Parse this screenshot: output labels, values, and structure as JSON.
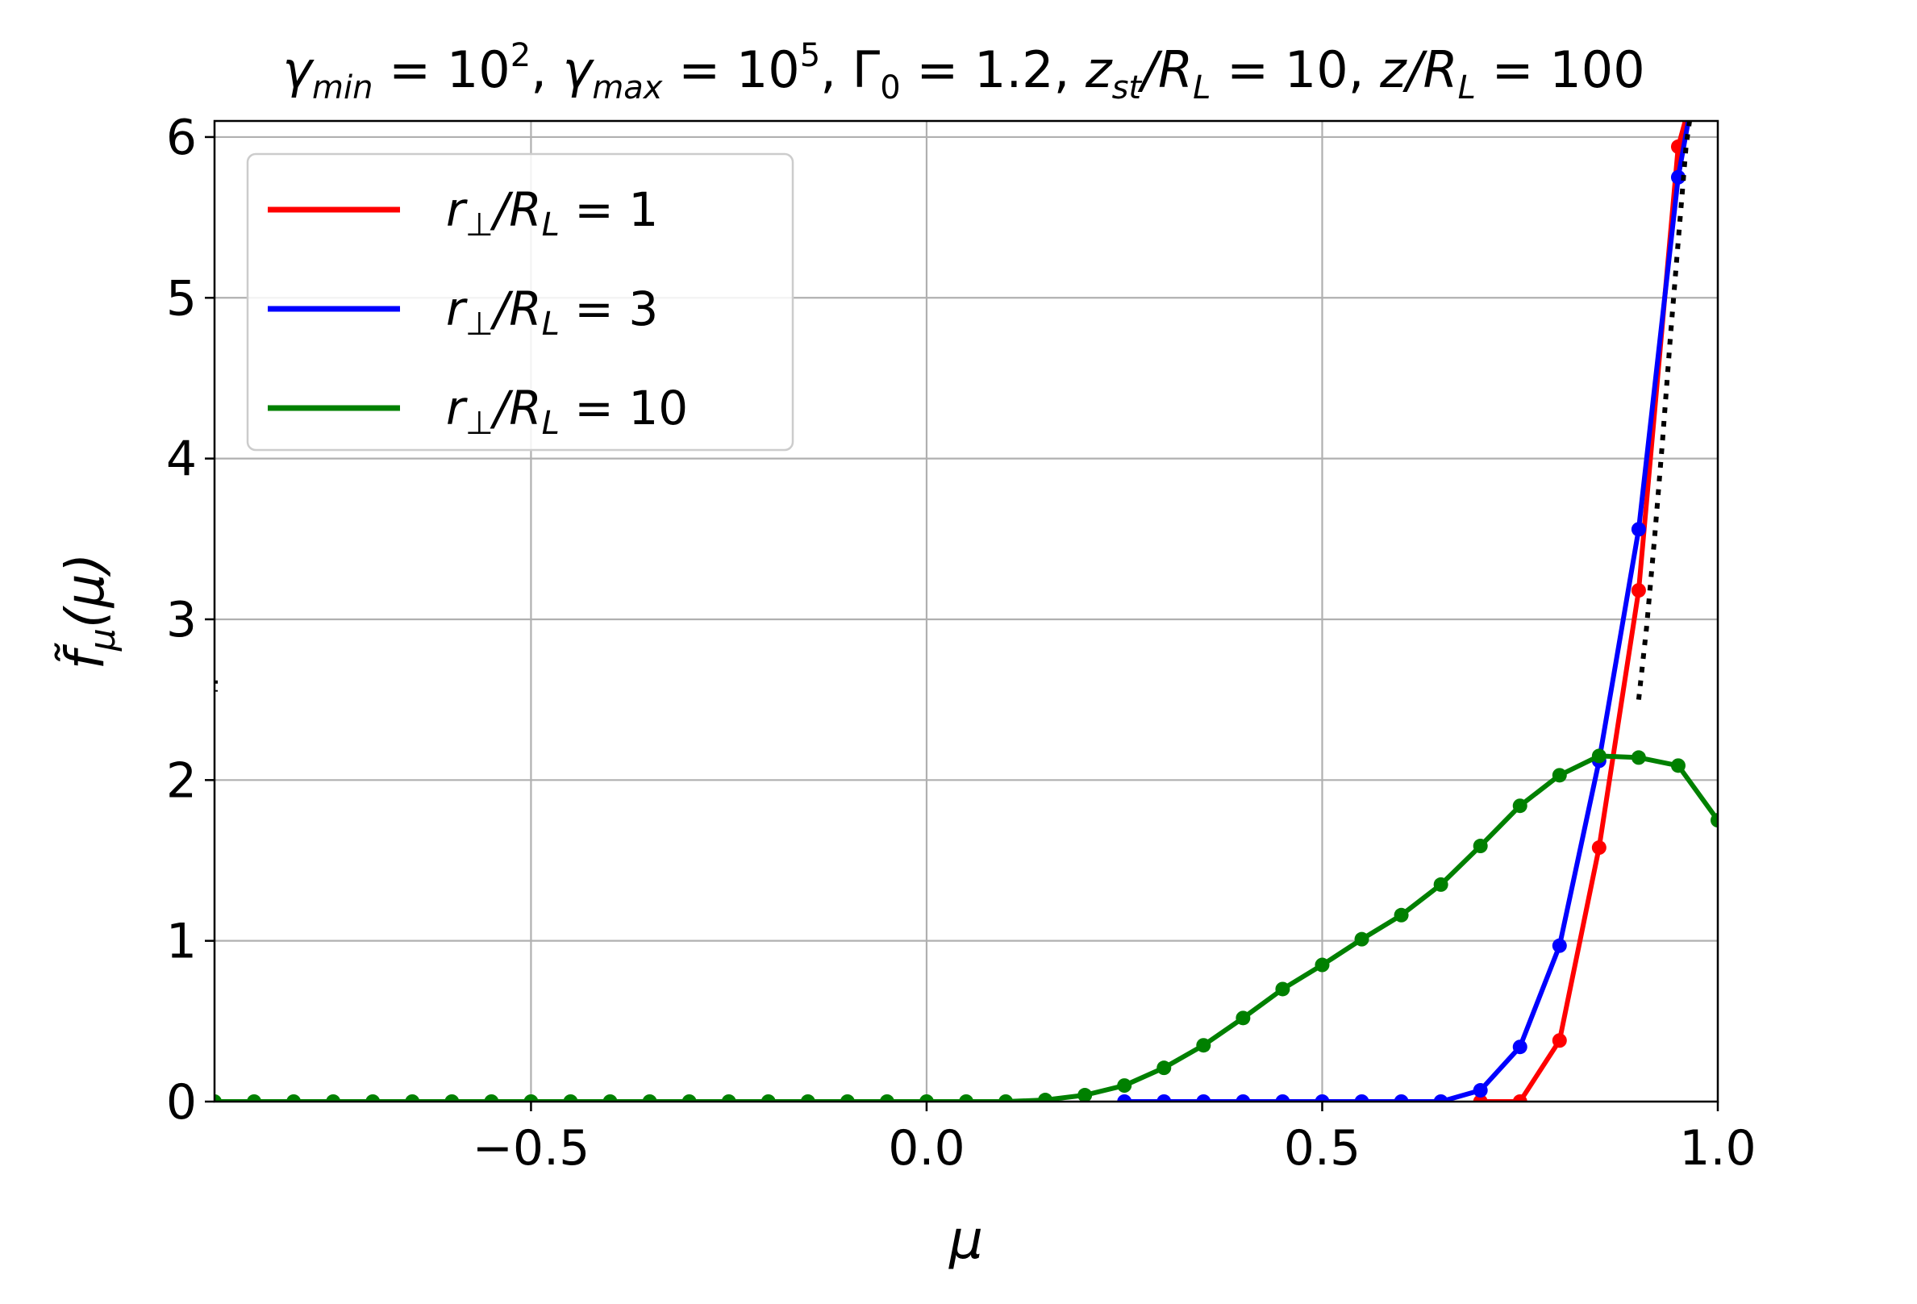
{
  "chart_data": {
    "type": "line",
    "title": "γmin = 10^2, γmax = 10^5, Γ0 = 1.2, zst/RL = 10, z/RL = 100",
    "title_parts": {
      "gamma": "γ",
      "min": "min",
      "max": "max",
      "eq": " = ",
      "ten": "10",
      "exp_min": "2",
      "exp_max": "5",
      "sep": ", ",
      "Gamma": "Γ",
      "zero": "0",
      "gamma0_value": "1.2",
      "z": "z",
      "st": "st",
      "slash": "/",
      "R": "R",
      "L": "L",
      "zst_value": "10",
      "z_value": "100"
    },
    "xlabel": "μ",
    "ylabel_parts": {
      "f": "f̃",
      "sub": "μ",
      "arg": "(μ)"
    },
    "xlim": [
      -0.9,
      1.0
    ],
    "ylim": [
      0,
      6.1
    ],
    "xticks": [
      -0.5,
      0.0,
      0.5,
      1.0
    ],
    "xtick_labels": [
      "−0.5",
      "0.0",
      "0.5",
      "1.0"
    ],
    "yticks": [
      0,
      1,
      2,
      3,
      4,
      5,
      6
    ],
    "ytick_labels": [
      "0",
      "1",
      "2",
      "3",
      "4",
      "5",
      "6"
    ],
    "grid": true,
    "legend_position": "upper-left",
    "legend_parts": {
      "r": "r",
      "perp": "⊥",
      "slash": "/",
      "R": "R",
      "L": "L",
      "eq": " = "
    },
    "series": [
      {
        "name": "r⊥/RL = 1",
        "label_value": "1",
        "color": "#ff0000",
        "x": [
          0.7,
          0.75,
          0.8,
          0.85,
          0.9,
          0.95,
          0.97
        ],
        "y": [
          0.0,
          0.0,
          0.38,
          1.58,
          3.18,
          5.94,
          6.3
        ]
      },
      {
        "name": "r⊥/RL = 3",
        "label_value": "3",
        "color": "#0000ff",
        "x": [
          0.25,
          0.3,
          0.35,
          0.4,
          0.45,
          0.5,
          0.55,
          0.6,
          0.65,
          0.7,
          0.75,
          0.8,
          0.85,
          0.9,
          0.95,
          0.97
        ],
        "y": [
          0.0,
          0.0,
          0.0,
          0.0,
          0.0,
          0.0,
          0.0,
          0.0,
          0.0,
          0.07,
          0.34,
          0.97,
          2.12,
          3.56,
          5.75,
          6.3
        ]
      },
      {
        "name": "r⊥/RL = 10",
        "label_value": "10",
        "color": "#008000",
        "x": [
          -0.9,
          -0.85,
          -0.8,
          -0.75,
          -0.7,
          -0.65,
          -0.6,
          -0.55,
          -0.5,
          -0.45,
          -0.4,
          -0.35,
          -0.3,
          -0.25,
          -0.2,
          -0.15,
          -0.1,
          -0.05,
          0.0,
          0.05,
          0.1,
          0.15,
          0.2,
          0.25,
          0.3,
          0.35,
          0.4,
          0.45,
          0.5,
          0.55,
          0.6,
          0.65,
          0.7,
          0.75,
          0.8,
          0.85,
          0.9,
          0.95,
          1.0
        ],
        "y": [
          0.0,
          0.0,
          0.0,
          0.0,
          0.0,
          0.0,
          0.0,
          0.0,
          0.0,
          0.0,
          0.0,
          0.0,
          0.0,
          0.0,
          0.0,
          0.0,
          0.0,
          0.0,
          0.0,
          0.0,
          0.0,
          0.01,
          0.04,
          0.1,
          0.21,
          0.35,
          0.52,
          0.7,
          0.85,
          1.01,
          1.16,
          1.35,
          1.59,
          1.84,
          2.03,
          2.15,
          2.14,
          2.09,
          1.75
        ]
      }
    ],
    "reference_line": {
      "style": "dotted",
      "color": "#000000",
      "x": [
        0.9,
        0.91,
        0.92,
        0.93,
        0.94,
        0.95,
        0.96,
        0.97
      ],
      "y": [
        2.5,
        2.95,
        3.5,
        4.1,
        4.75,
        5.35,
        5.95,
        6.3
      ]
    },
    "edge_mark": {
      "x": -0.9,
      "y_range": [
        2.55,
        2.62
      ]
    }
  }
}
